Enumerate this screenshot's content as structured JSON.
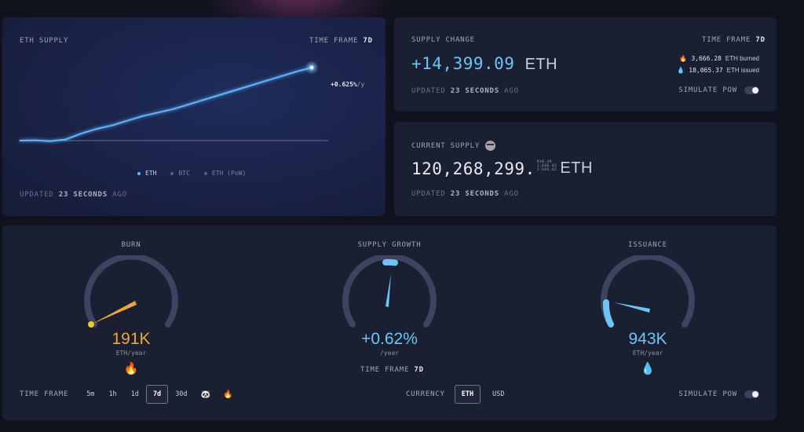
{
  "supply_chart": {
    "title": "ETH SUPPLY",
    "timeframe_label": "TIME FRAME",
    "timeframe_value": "7d",
    "growth_label": "+0.625%",
    "growth_unit": "/y",
    "legend": [
      "ETH",
      "BTC",
      "ETH (PoW)"
    ],
    "updated_prefix": "UPDATED",
    "updated_value": "23 SECONDS",
    "updated_suffix": "AGO"
  },
  "chart_data": {
    "type": "line",
    "title": "ETH SUPPLY",
    "xlabel": "",
    "ylabel": "",
    "series": [
      {
        "name": "ETH",
        "color": "#5eb6ff",
        "values": [
          0.0,
          0.003,
          -0.005,
          0.01,
          0.06,
          0.1,
          0.13,
          0.17,
          0.21,
          0.24,
          0.27,
          0.31,
          0.35,
          0.39,
          0.43,
          0.47,
          0.51,
          0.55,
          0.59,
          0.625
        ]
      }
    ],
    "grid": false,
    "legend_position": "bottom"
  },
  "supply_change": {
    "title": "SUPPLY CHANGE",
    "timeframe_label": "TIME FRAME",
    "timeframe_value": "7d",
    "value": "+14,399.09",
    "unit": "ETH",
    "burned_value": "3,666.28",
    "burned_unit": "ETH burned",
    "issued_value": "18,065.37",
    "issued_unit": "ETH issued",
    "updated_prefix": "UPDATED",
    "updated_value": "23 SECONDS",
    "updated_suffix": "AGO",
    "simulate_label": "SIMULATE PoW"
  },
  "current_supply": {
    "title": "CURRENT SUPPLY",
    "value": "120,268,299.",
    "decimals": [
      "910.49",
      "1,666.62",
      "1,666.62"
    ],
    "unit": "ETH",
    "updated_prefix": "UPDATED",
    "updated_value": "23 SECONDS",
    "updated_suffix": "AGO"
  },
  "gauges": {
    "burn": {
      "title": "BURN",
      "value": "191K",
      "unit": "ETH/year",
      "color": "#f0a63a"
    },
    "growth": {
      "title": "SUPPLY GROWTH",
      "value": "+0.62%",
      "unit": "/year",
      "color": "#6ec5f5",
      "timeframe_label": "TIME FRAME",
      "timeframe_value": "7d"
    },
    "issuance": {
      "title": "ISSUANCE",
      "value": "943K",
      "unit": "ETH/year",
      "color": "#6ec5f5"
    }
  },
  "controls": {
    "timeframe_label": "TIME FRAME",
    "timeframes": [
      "5m",
      "1h",
      "1d",
      "7d",
      "30d"
    ],
    "active_timeframe": "7d",
    "currency_label": "CURRENCY",
    "currencies": [
      "ETH",
      "USD"
    ],
    "active_currency": "ETH",
    "simulate_label": "SIMULATE PoW"
  }
}
